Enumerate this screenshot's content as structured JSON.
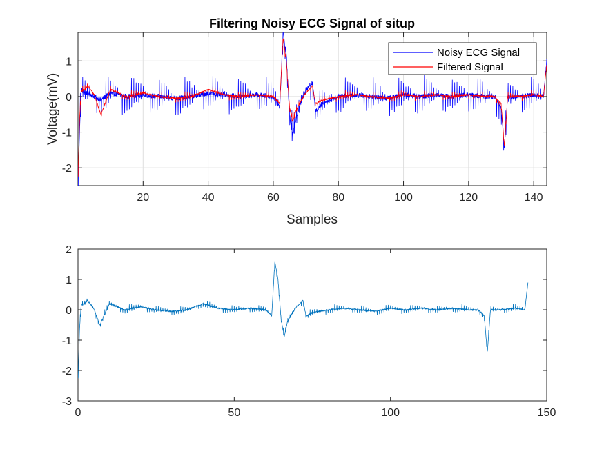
{
  "colors": {
    "noisy": "#0000ff",
    "filtered": "#ff0000",
    "single": "#0072bd",
    "grid": "#dfdfdf",
    "axis": "#262626"
  },
  "chart_data": [
    {
      "type": "line",
      "title": "Filtering Noisy ECG Signal of situp",
      "xlabel": "Samples",
      "ylabel": "Voltage(mV)",
      "xlim": [
        0,
        144
      ],
      "ylim": [
        -2.5,
        1.8
      ],
      "xticks": [
        "20",
        "40",
        "60",
        "80",
        "100",
        "120",
        "140"
      ],
      "yticks": [
        "1",
        "0",
        "-1",
        "-2"
      ],
      "xtick_values": [
        20,
        40,
        60,
        80,
        100,
        120,
        140
      ],
      "ytick_values": [
        1,
        0,
        -1,
        -2
      ],
      "grid": true,
      "legend": "top-right",
      "series": [
        {
          "name": "Noisy ECG Signal",
          "color": "#0000ff",
          "x": [
            0,
            0.5,
            1,
            2,
            3,
            5,
            7,
            10,
            15,
            20,
            25,
            30,
            35,
            40,
            45,
            50,
            55,
            60,
            62,
            63,
            64,
            65,
            66,
            67,
            68,
            70,
            72,
            73,
            75,
            80,
            85,
            90,
            95,
            100,
            105,
            110,
            115,
            120,
            125,
            128,
            130,
            131,
            132,
            135,
            140,
            143,
            144
          ],
          "y": [
            -2.5,
            -0.9,
            0.2,
            0.1,
            0.1,
            0,
            -0.1,
            0.1,
            0,
            0.05,
            0,
            -0.05,
            0,
            0.1,
            0.05,
            0,
            0.05,
            0,
            -0.3,
            1.8,
            1.2,
            -0.5,
            -1.1,
            -0.6,
            -0.3,
            0.2,
            0.4,
            -0.4,
            -0.2,
            0,
            0.05,
            0,
            -0.05,
            0.05,
            0,
            0.05,
            0,
            0.05,
            0,
            0,
            -0.3,
            -1.5,
            0,
            0,
            0.05,
            0,
            1.0
          ],
          "noise_amplitude": 0.55
        },
        {
          "name": "Filtered Signal",
          "color": "#ff0000",
          "x": [
            0,
            0.5,
            1,
            2,
            3,
            5,
            7,
            10,
            15,
            20,
            25,
            30,
            35,
            40,
            45,
            50,
            55,
            60,
            62,
            63,
            64,
            65,
            66,
            67,
            68,
            70,
            72,
            73,
            75,
            80,
            85,
            90,
            95,
            100,
            105,
            110,
            115,
            120,
            125,
            128,
            130,
            131,
            132,
            135,
            140,
            143,
            144
          ],
          "y": [
            -2.4,
            -0.6,
            0.15,
            0.2,
            0.3,
            0.05,
            -0.5,
            0.2,
            0,
            0.1,
            0,
            -0.05,
            0,
            0.2,
            0.05,
            0,
            0.05,
            0,
            -0.2,
            1.65,
            1.0,
            -0.3,
            -0.7,
            -0.4,
            -0.2,
            0.1,
            0.3,
            -0.2,
            -0.1,
            0,
            0.05,
            0,
            -0.05,
            0.05,
            0,
            0.05,
            0,
            0.05,
            0,
            0,
            -0.2,
            -1.4,
            0,
            0,
            0.05,
            0,
            0.9
          ],
          "noise_amplitude": 0.15
        }
      ]
    },
    {
      "type": "line",
      "title": "",
      "xlabel": "",
      "ylabel": "",
      "xlim": [
        0,
        150
      ],
      "ylim": [
        -3,
        2
      ],
      "xticks": [
        "0",
        "50",
        "100",
        "150"
      ],
      "yticks": [
        "2",
        "1",
        "0",
        "-1",
        "-2",
        "-3"
      ],
      "xtick_values": [
        0,
        50,
        100,
        150
      ],
      "ytick_values": [
        2,
        1,
        0,
        -1,
        -2,
        -3
      ],
      "grid": false,
      "series": [
        {
          "color": "#0072bd",
          "x": [
            0,
            0.5,
            1,
            2,
            3,
            5,
            7,
            10,
            15,
            20,
            25,
            30,
            35,
            40,
            45,
            50,
            55,
            60,
            62,
            63,
            64,
            65,
            66,
            67,
            68,
            70,
            72,
            73,
            75,
            80,
            85,
            90,
            95,
            100,
            105,
            110,
            115,
            120,
            125,
            128,
            130,
            131,
            132,
            135,
            140,
            143,
            144
          ],
          "y": [
            -2.4,
            -0.6,
            0.15,
            0.2,
            0.3,
            0.05,
            -0.5,
            0.2,
            0,
            0.1,
            0,
            -0.05,
            0,
            0.2,
            0.05,
            0,
            0.05,
            0,
            -0.2,
            1.6,
            1.0,
            -0.3,
            -0.9,
            -0.4,
            -0.2,
            0.1,
            0.3,
            -0.2,
            -0.1,
            0,
            0.05,
            0,
            -0.05,
            0.05,
            0,
            0.05,
            0,
            0.05,
            0,
            0,
            -0.2,
            -1.4,
            0,
            0,
            0.05,
            0,
            0.9
          ],
          "noise_amplitude": 0.15
        }
      ]
    }
  ]
}
